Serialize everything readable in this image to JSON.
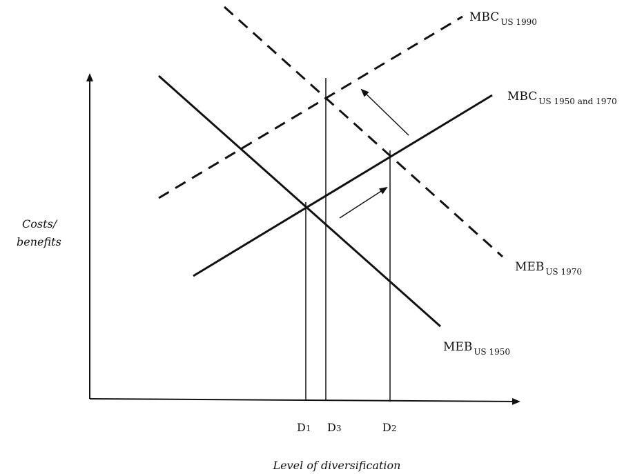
{
  "axes": {
    "y_label_line1": "Costs/",
    "y_label_line2": "benefits",
    "x_label": "Level of diversification"
  },
  "ticks": [
    {
      "key": "d1",
      "main": "D",
      "sub": "1"
    },
    {
      "key": "d3",
      "main": "D",
      "sub": "3"
    },
    {
      "key": "d2",
      "main": "D",
      "sub": "2"
    }
  ],
  "curves": {
    "mbc_1990": {
      "main": "MBC",
      "sub": "US 1990",
      "style": "dashed"
    },
    "mbc_1950_1970": {
      "main": "MBC",
      "sub": "US 1950 and 1970",
      "style": "solid"
    },
    "meb_1970": {
      "main": "MEB",
      "sub": "US 1970",
      "style": "dashed"
    },
    "meb_1950": {
      "main": "MEB",
      "sub": "US 1950",
      "style": "solid"
    }
  },
  "colors": {
    "ink": "#111111",
    "background": "#ffffff"
  }
}
